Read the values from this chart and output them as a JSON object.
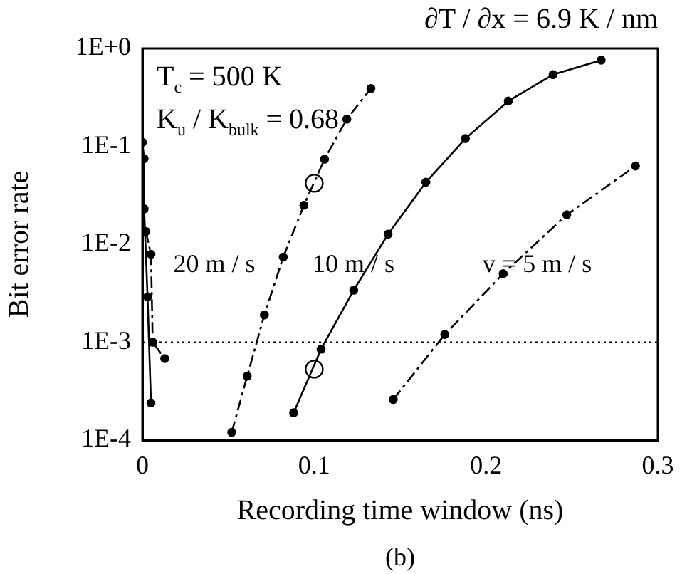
{
  "chart_data": {
    "type": "line",
    "title": "∂T / ∂x = 6.9 K / nm",
    "xlabel": "Recording time window (ns)",
    "ylabel": "Bit error rate",
    "xlim": [
      0,
      0.3
    ],
    "xticks": [
      0,
      0.1,
      0.2,
      0.3
    ],
    "ylim": [
      0.0001,
      1
    ],
    "log": "y",
    "yticks": [
      {
        "value": 1,
        "label": "1E+0"
      },
      {
        "value": 0.1,
        "label": "1E-1"
      },
      {
        "value": 0.01,
        "label": "1E-2"
      },
      {
        "value": 0.001,
        "label": "1E-3"
      },
      {
        "value": 0.0001,
        "label": "1E-4"
      }
    ],
    "grid": false,
    "legend": false,
    "marker": "circle",
    "series": [
      {
        "color": "#000000",
        "line_style": "solid",
        "x": [
          0,
          0.001,
          0.001,
          0.003,
          0.005
        ],
        "values": [
          0.11,
          0.075,
          0.023,
          0.0029,
          0.00024
        ]
      },
      {
        "color": "#000000",
        "line_style": "dashed",
        "x": [
          0.002,
          0.005,
          0.006,
          0.013
        ],
        "values": [
          0.0135,
          0.0079,
          0.001,
          0.00068
        ]
      },
      {
        "color": "#000000",
        "line_style": "dashed",
        "x": [
          0.052,
          0.061,
          0.071,
          0.082,
          0.094,
          0.106,
          0.119,
          0.133
        ],
        "values": [
          0.00012,
          0.00045,
          0.0019,
          0.0074,
          0.025,
          0.074,
          0.19,
          0.39
        ]
      },
      {
        "color": "#000000",
        "line_style": "solid",
        "x": [
          0.088,
          0.104,
          0.123,
          0.143,
          0.165,
          0.188,
          0.213,
          0.239,
          0.267
        ],
        "values": [
          0.00019,
          0.00085,
          0.0034,
          0.0127,
          0.043,
          0.12,
          0.29,
          0.54,
          0.76
        ]
      },
      {
        "color": "#000000",
        "line_style": "dashed",
        "x": [
          0.146,
          0.176,
          0.21,
          0.247,
          0.287
        ],
        "values": [
          0.00026,
          0.0012,
          0.005,
          0.02,
          0.063
        ]
      },
      {
        "type": "scatter",
        "color": "#000000",
        "x": [
          0.1,
          0.1
        ],
        "values": [
          0.00053,
          0.042
        ]
      }
    ],
    "ref_lines": [
      {
        "axis": "y",
        "value": 0.001,
        "line_style": "dotted"
      }
    ],
    "annotations": [
      "T$_{c}$ = 500 K",
      "K$_{u}$ / K$_{bulk}$ = 0.68",
      "20 m / s",
      "10 m / s",
      "v = 5 m / s",
      "(b)"
    ]
  }
}
